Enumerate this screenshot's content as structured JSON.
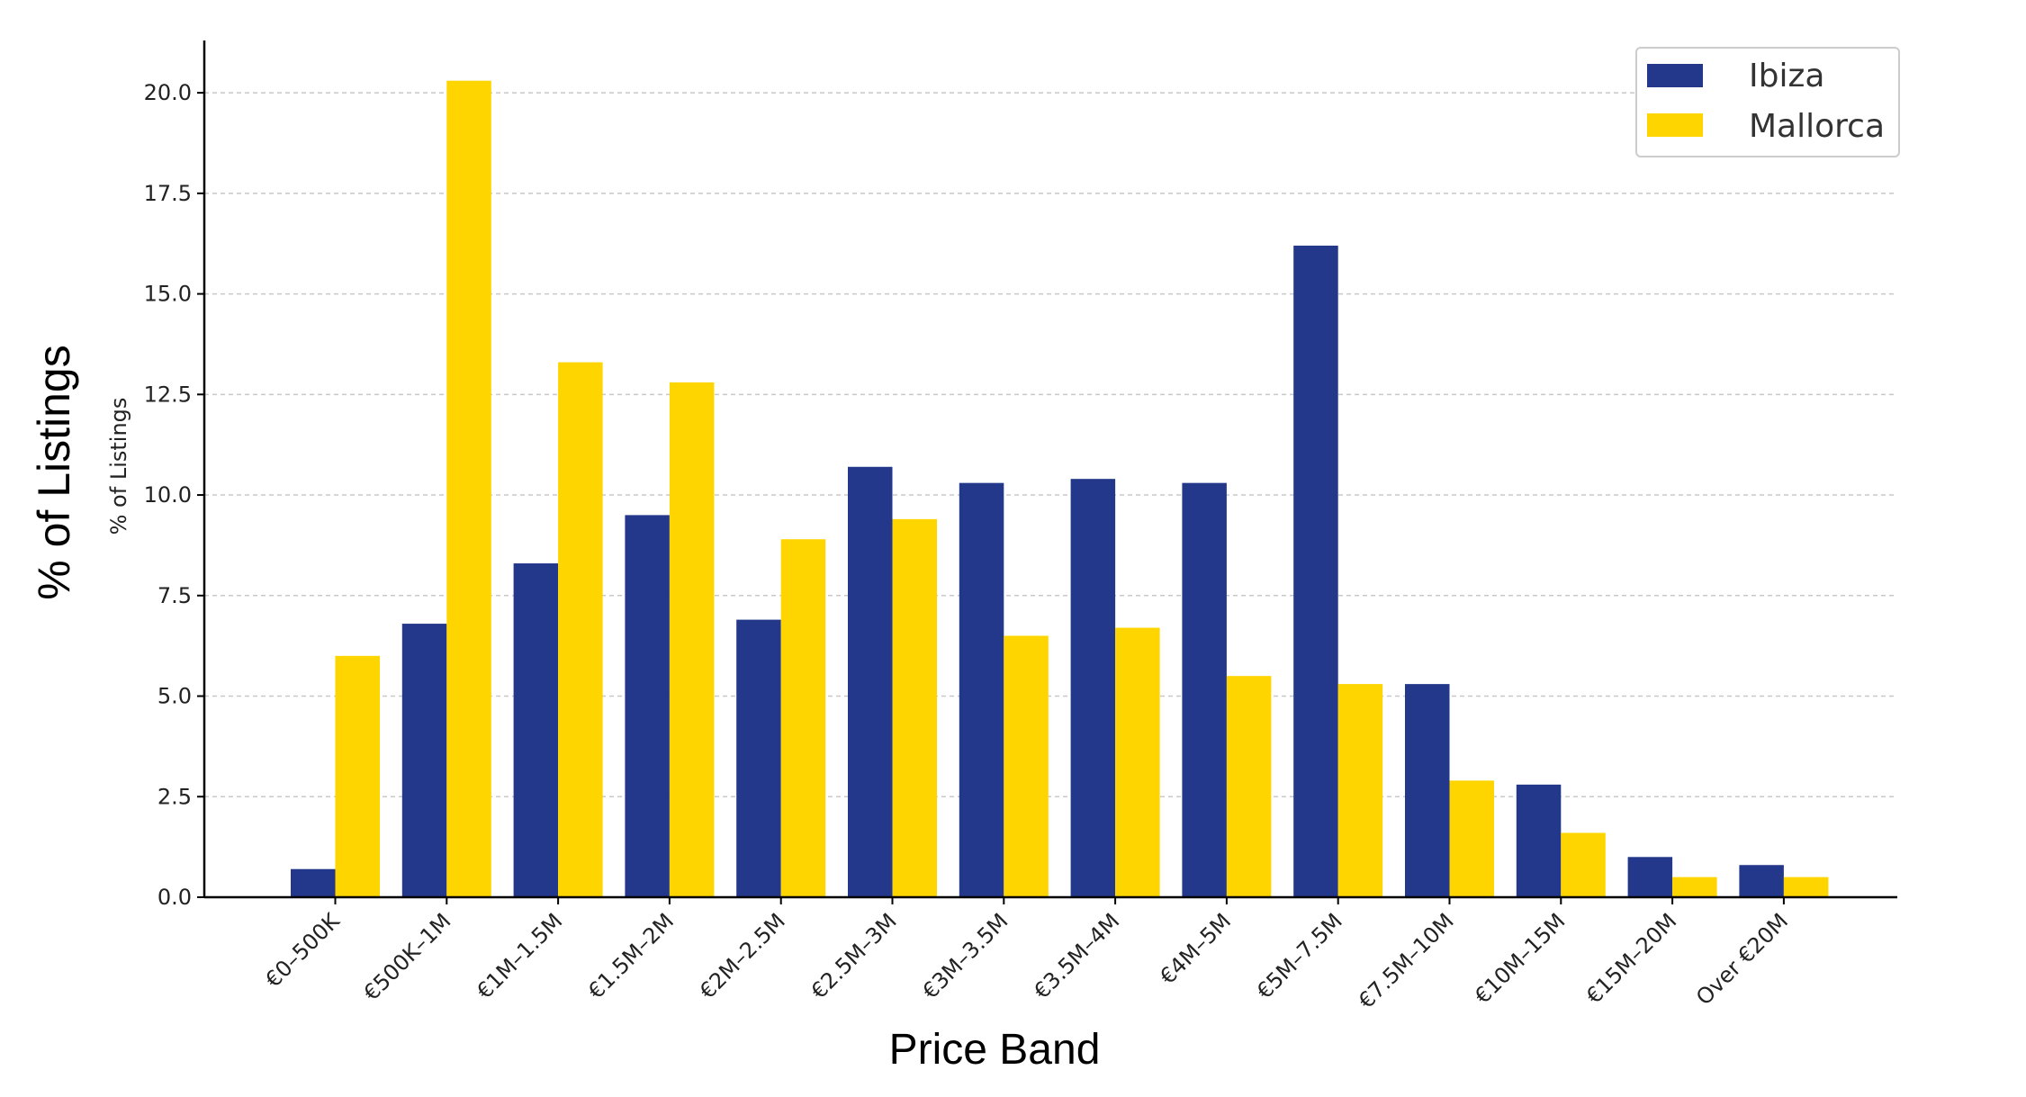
{
  "chart_data": {
    "type": "bar",
    "title": "",
    "xlabel": "Price Band",
    "ylabel": "% of Listings",
    "ylabel_inner": "% of Listings",
    "categories": [
      "€0–500K",
      "€500K–1M",
      "€1M–1.5M",
      "€1.5M–2M",
      "€2M–2.5M",
      "€2.5M–3M",
      "€3M–3.5M",
      "€3.5M–4M",
      "€4M–5M",
      "€5M–7.5M",
      "€7.5M–10M",
      "€10M–15M",
      "€15M–20M",
      "Over €20M"
    ],
    "series": [
      {
        "name": "Ibiza",
        "color": "#23388a",
        "values": [
          0.7,
          6.8,
          8.3,
          9.5,
          6.9,
          10.7,
          10.3,
          10.4,
          10.3,
          16.2,
          5.3,
          2.8,
          1.0,
          0.8
        ]
      },
      {
        "name": "Mallorca",
        "color": "#ffd500",
        "values": [
          6.0,
          20.3,
          13.3,
          12.8,
          8.9,
          9.4,
          6.5,
          6.7,
          5.5,
          5.3,
          2.9,
          1.6,
          0.5,
          0.5
        ]
      }
    ],
    "ylim": [
      0,
      21.3
    ],
    "yticks": [
      "0.0",
      "2.5",
      "5.0",
      "7.5",
      "10.0",
      "12.5",
      "15.0",
      "17.5",
      "20.0"
    ],
    "grid": "horizontal dashed",
    "legend": "top-right"
  }
}
